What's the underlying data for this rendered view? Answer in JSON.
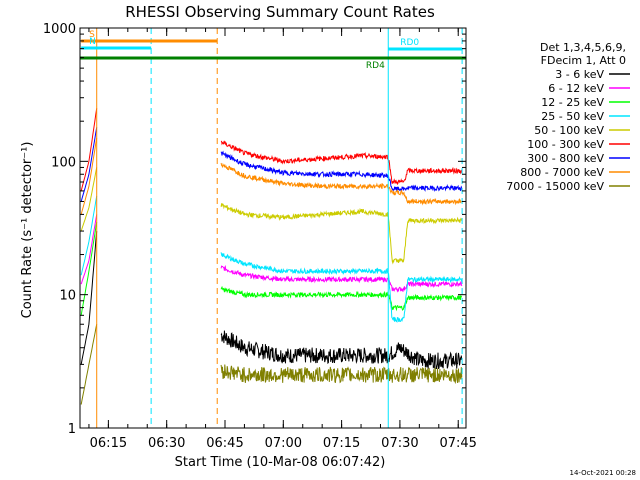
{
  "chart_data": {
    "type": "line",
    "title": "RHESSI Observing Summary Count Rates",
    "xlabel": "Start Time (10-Mar-08 06:07:42)",
    "ylabel": "Count Rate (s⁻¹ detector⁻¹)",
    "y_scale": "log",
    "ylim": [
      1,
      1000
    ],
    "xlim": [
      "06:07:42",
      "07:47:00"
    ],
    "x_ticks": [
      "06:15",
      "06:30",
      "06:45",
      "07:00",
      "07:15",
      "07:30",
      "07:45"
    ],
    "y_ticks": [
      "1",
      "10",
      "100",
      "1000"
    ],
    "legend_header": [
      "Det 1,3,4,5,6,9,",
      "FDecim 1, Att 0"
    ],
    "legend_position": "right",
    "annotations": {
      "flags": [
        {
          "label": "S",
          "color": "#ff8c00",
          "start": "06:08",
          "end": "06:43"
        },
        {
          "label": "N",
          "color": "#00e5ff",
          "start": "06:08",
          "end": "06:26"
        },
        {
          "label": "RD0",
          "color": "#00e5ff",
          "start": "07:27",
          "end": "07:46"
        },
        {
          "label": "RD4",
          "color": "#008000",
          "start": "07:30",
          "end": "07:36"
        }
      ],
      "vertical_lines": [
        {
          "time": "06:12",
          "color": "#ff8c00",
          "style": "solid"
        },
        {
          "time": "06:26",
          "color": "#00e5ff",
          "style": "dashed"
        },
        {
          "time": "06:43",
          "color": "#ff8c00",
          "style": "dashed"
        },
        {
          "time": "07:27",
          "color": "#00e5ff",
          "style": "solid"
        },
        {
          "time": "07:46",
          "color": "#00e5ff",
          "style": "dashed"
        }
      ]
    },
    "series": [
      {
        "name": "3 - 6 keV",
        "color": "#000000",
        "segments": [
          {
            "t": [
              "06:08",
              "06:10",
              "06:12"
            ],
            "v": [
              3,
              6,
              30
            ]
          },
          {
            "t": [
              "06:44",
              "06:50",
              "07:00",
              "07:10",
              "07:20",
              "07:27",
              "07:30",
              "07:35",
              "07:40",
              "07:46"
            ],
            "v": [
              5,
              4,
              3.5,
              3.5,
              3.5,
              3.5,
              4,
              3.2,
              3.2,
              3.2
            ]
          }
        ]
      },
      {
        "name": "6 - 12 keV",
        "color": "#ff00ff",
        "segments": [
          {
            "t": [
              "06:08",
              "06:10",
              "06:12"
            ],
            "v": [
              12,
              18,
              40
            ]
          },
          {
            "t": [
              "06:44",
              "06:50",
              "07:00",
              "07:10",
              "07:20",
              "07:27",
              "07:28",
              "07:31",
              "07:32",
              "07:40",
              "07:46"
            ],
            "v": [
              16,
              14,
              13,
              13,
              13,
              13,
              11,
              11,
              12,
              12,
              12
            ]
          }
        ]
      },
      {
        "name": "12 - 25 keV",
        "color": "#00ff00",
        "segments": [
          {
            "t": [
              "06:08",
              "06:10",
              "06:12"
            ],
            "v": [
              7,
              15,
              35
            ]
          },
          {
            "t": [
              "06:44",
              "06:50",
              "07:00",
              "07:10",
              "07:20",
              "07:27",
              "07:28",
              "07:31",
              "07:32",
              "07:40",
              "07:46"
            ],
            "v": [
              11,
              10,
              10,
              10,
              10,
              10,
              8,
              8,
              9.5,
              9.5,
              9.5
            ]
          }
        ]
      },
      {
        "name": "25 - 50 keV",
        "color": "#00e5ff",
        "segments": [
          {
            "t": [
              "06:08",
              "06:10",
              "06:12"
            ],
            "v": [
              14,
              25,
              55
            ]
          },
          {
            "t": [
              "06:44",
              "06:50",
              "07:00",
              "07:10",
              "07:20",
              "07:27",
              "07:28",
              "07:31",
              "07:32",
              "07:40",
              "07:46"
            ],
            "v": [
              20,
              17,
              15,
              15,
              15,
              15,
              6.5,
              6.5,
              13,
              13,
              13
            ]
          }
        ]
      },
      {
        "name": "50 - 100 keV",
        "color": "#cccc00",
        "segments": [
          {
            "t": [
              "06:08",
              "06:10",
              "06:12"
            ],
            "v": [
              30,
              45,
              90
            ]
          },
          {
            "t": [
              "06:44",
              "06:50",
              "07:00",
              "07:10",
              "07:20",
              "07:27",
              "07:28",
              "07:31",
              "07:32",
              "07:40",
              "07:46"
            ],
            "v": [
              47,
              40,
              38,
              40,
              42,
              40,
              18,
              18,
              36,
              36,
              36
            ]
          }
        ]
      },
      {
        "name": "100 - 300 keV",
        "color": "#ff0000",
        "segments": [
          {
            "t": [
              "06:08",
              "06:10",
              "06:12"
            ],
            "v": [
              60,
              100,
              250
            ]
          },
          {
            "t": [
              "06:44",
              "06:50",
              "07:00",
              "07:10",
              "07:20",
              "07:27",
              "07:28",
              "07:31",
              "07:32",
              "07:40",
              "07:46"
            ],
            "v": [
              140,
              115,
              100,
              105,
              110,
              108,
              70,
              70,
              85,
              85,
              85
            ]
          }
        ]
      },
      {
        "name": "300 - 800 keV",
        "color": "#0000ff",
        "segments": [
          {
            "t": [
              "06:08",
              "06:10",
              "06:12"
            ],
            "v": [
              50,
              80,
              180
            ]
          },
          {
            "t": [
              "06:44",
              "06:50",
              "07:00",
              "07:10",
              "07:20",
              "07:27",
              "07:28",
              "07:31",
              "07:32",
              "07:40",
              "07:46"
            ],
            "v": [
              115,
              95,
              82,
              80,
              80,
              78,
              62,
              62,
              63,
              63,
              63
            ]
          }
        ]
      },
      {
        "name": "800 - 7000 keV",
        "color": "#ff8c00",
        "segments": [
          {
            "t": [
              "06:08",
              "06:10",
              "06:12"
            ],
            "v": [
              40,
              65,
              150
            ]
          },
          {
            "t": [
              "06:44",
              "06:50",
              "07:00",
              "07:10",
              "07:20",
              "07:27",
              "07:28",
              "07:31",
              "07:32",
              "07:40",
              "07:46"
            ],
            "v": [
              95,
              78,
              68,
              65,
              65,
              65,
              58,
              58,
              50,
              50,
              50
            ]
          }
        ]
      },
      {
        "name": "7000 - 15000 keV",
        "color": "#808000",
        "segments": [
          {
            "t": [
              "06:08",
              "06:10",
              "06:12"
            ],
            "v": [
              1.5,
              3,
              6
            ]
          },
          {
            "t": [
              "06:44",
              "06:50",
              "07:00",
              "07:10",
              "07:20",
              "07:27",
              "07:30",
              "07:40",
              "07:46"
            ],
            "v": [
              2.7,
              2.5,
              2.5,
              2.5,
              2.5,
              2.5,
              2.5,
              2.5,
              2.5
            ]
          }
        ]
      }
    ]
  },
  "footer": {
    "timestamp": "14-Oct-2021 00:28"
  }
}
